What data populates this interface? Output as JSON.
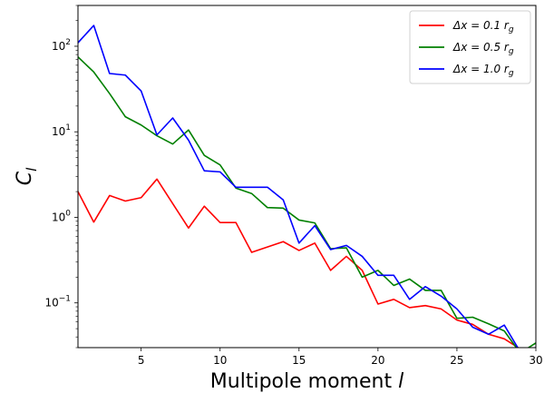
{
  "chart_data": {
    "type": "line",
    "xlabel": "Multipole moment l",
    "ylabel": "C_l",
    "xlim": [
      1,
      30
    ],
    "ylim": [
      0.03,
      300
    ],
    "yscale": "log",
    "grid": false,
    "legend_position": "top-right",
    "x_ticks": [
      5,
      10,
      15,
      20,
      25,
      30
    ],
    "x_tick_labels": [
      "5",
      "10",
      "15",
      "20",
      "25",
      "30"
    ],
    "y_ticks": [
      0.1,
      1,
      10,
      100
    ],
    "y_tick_labels": [
      {
        "base": "10",
        "exp": "−1"
      },
      {
        "base": "10",
        "exp": "0"
      },
      {
        "base": "10",
        "exp": "1"
      },
      {
        "base": "10",
        "exp": "2"
      }
    ],
    "x": [
      1,
      2,
      3,
      4,
      5,
      6,
      7,
      8,
      9,
      10,
      11,
      12,
      13,
      14,
      15,
      16,
      17,
      18,
      19,
      20,
      21,
      22,
      23,
      24,
      25,
      26,
      27,
      28,
      29,
      30
    ],
    "series": [
      {
        "name": "Δx = 0.1 r_g",
        "legend_main": "Δx = 0.1",
        "legend_unit": "r",
        "legend_sub": "g",
        "color": "#ff0000",
        "values": [
          2.0,
          0.88,
          1.8,
          1.55,
          1.7,
          2.8,
          1.45,
          0.75,
          1.35,
          0.87,
          0.87,
          0.39,
          0.45,
          0.52,
          0.41,
          0.5,
          0.24,
          0.35,
          0.24,
          0.097,
          0.11,
          0.088,
          0.093,
          0.085,
          0.063,
          0.056,
          0.043,
          0.038,
          0.029,
          0.027
        ]
      },
      {
        "name": "Δx = 0.5 r_g",
        "legend_main": "Δx = 0.5",
        "legend_unit": "r",
        "legend_sub": "g",
        "color": "#008000",
        "values": [
          75,
          50,
          28,
          15,
          12,
          9,
          7.2,
          10.5,
          5.3,
          4.1,
          2.2,
          1.9,
          1.3,
          1.28,
          0.93,
          0.86,
          0.43,
          0.44,
          0.2,
          0.24,
          0.16,
          0.19,
          0.14,
          0.14,
          0.066,
          0.068,
          0.057,
          0.047,
          0.026,
          0.034
        ]
      },
      {
        "name": "Δx = 1.0 r_g",
        "legend_main": "Δx = 1.0",
        "legend_unit": "r",
        "legend_sub": "g",
        "color": "#0000ff",
        "values": [
          110,
          175,
          48,
          46,
          30,
          9.2,
          14.5,
          8.0,
          3.5,
          3.4,
          2.25,
          2.25,
          2.25,
          1.6,
          0.5,
          0.8,
          0.42,
          0.47,
          0.35,
          0.21,
          0.21,
          0.11,
          0.155,
          0.12,
          0.085,
          0.052,
          0.043,
          0.055,
          0.027,
          0.03
        ]
      }
    ]
  }
}
